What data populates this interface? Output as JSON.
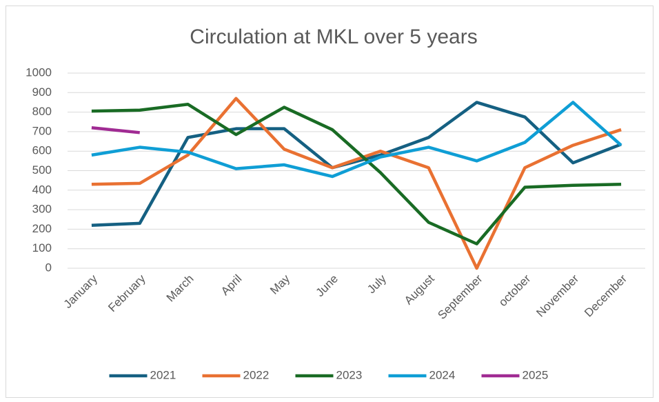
{
  "chart_data": {
    "type": "line",
    "title": "Circulation at MKL over 5 years",
    "categories": [
      "January",
      "February",
      "March",
      "April",
      "May",
      "June",
      "July",
      "August",
      "September",
      "october",
      "November",
      "December"
    ],
    "series": [
      {
        "name": "2021",
        "color": "#156082",
        "values": [
          220,
          230,
          670,
          715,
          715,
          515,
          580,
          670,
          850,
          775,
          540,
          635
        ]
      },
      {
        "name": "2022",
        "color": "#e97132",
        "values": [
          430,
          435,
          580,
          870,
          610,
          515,
          600,
          515,
          0,
          515,
          630,
          710
        ]
      },
      {
        "name": "2023",
        "color": "#196b24",
        "values": [
          805,
          810,
          840,
          685,
          825,
          710,
          490,
          235,
          125,
          415,
          425,
          430
        ]
      },
      {
        "name": "2024",
        "color": "#0f9ed5",
        "values": [
          580,
          620,
          595,
          510,
          530,
          470,
          570,
          620,
          550,
          645,
          850,
          630
        ]
      },
      {
        "name": "2025",
        "color": "#a02b93",
        "values": [
          720,
          695,
          null,
          null,
          null,
          null,
          null,
          null,
          null,
          null,
          null,
          null
        ]
      }
    ],
    "ylim": [
      0,
      1000
    ],
    "yticks": [
      0,
      100,
      200,
      300,
      400,
      500,
      600,
      700,
      800,
      900,
      1000
    ],
    "grid": true,
    "legend": "bottom"
  }
}
